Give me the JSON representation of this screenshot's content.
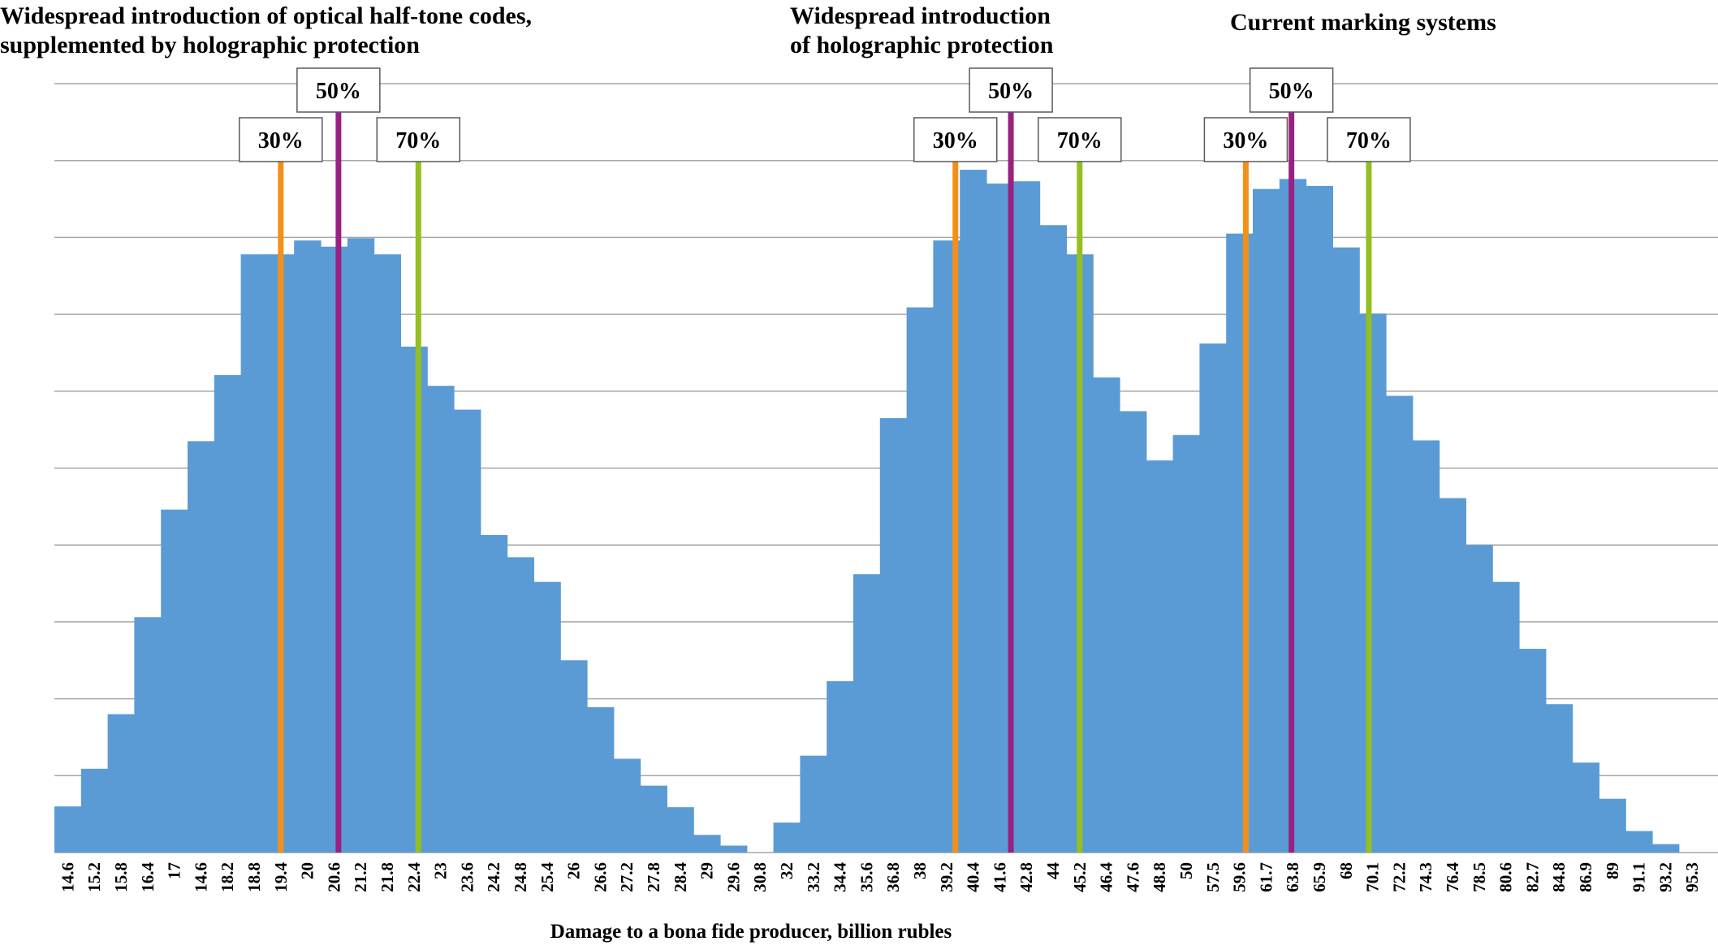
{
  "chart_data": {
    "type": "bar",
    "xlabel": "Damage to a bona fide producer, billion rubles",
    "y_axis_labels_shown": false,
    "grid": true,
    "ylim": [
      0,
      100
    ],
    "groups": [
      {
        "title_lines": [
          "Widespread introduction of optical half-tone codes,",
          "supplemented by holographic protection"
        ],
        "categories": [
          "14.6",
          "15.2",
          "15.8",
          "16.4",
          "17",
          "14.6",
          "18.2",
          "18.8",
          "19.4",
          "20",
          "20.6",
          "21.2",
          "21.8",
          "22.4",
          "23",
          "23.6",
          "24.2",
          "24.8",
          "25.4",
          "26",
          "26.6",
          "27.2",
          "27.8",
          "28.4",
          "29",
          "29.6"
        ],
        "values": [
          6,
          10.9,
          18,
          30.6,
          44.6,
          53.5,
          62.1,
          77.8,
          77.8,
          79.6,
          78.8,
          79.9,
          77.8,
          65.8,
          60.7,
          57.6,
          41.3,
          38.4,
          35.2,
          25,
          18.9,
          12.2,
          8.7,
          5.9,
          2.3,
          0.9
        ],
        "markers": [
          {
            "label": "30%",
            "color": "#F39019",
            "at": 19.4
          },
          {
            "label": "50%",
            "color": "#992183",
            "at": 20.7
          },
          {
            "label": "70%",
            "color": "#93C020",
            "at": 22.5
          }
        ]
      },
      {
        "title_lines": [
          "Widespread introduction",
          "of holographic protection"
        ],
        "categories": [
          "30.8",
          "32",
          "33.2",
          "34.4",
          "35.6",
          "36.8",
          "38",
          "39.2",
          "40.4",
          "41.6",
          "42.8",
          "44",
          "45.2",
          "46.4",
          "47.6",
          "48.8"
        ],
        "values": [
          0,
          3.9,
          12.6,
          22.3,
          36.2,
          56.5,
          70.9,
          79.6,
          88.8,
          87,
          87.3,
          81.6,
          77.8,
          61.8,
          57.4,
          51
        ],
        "markers": [
          {
            "label": "30%",
            "color": "#F39019",
            "at": 39.6
          },
          {
            "label": "50%",
            "color": "#992183",
            "at": 42.1
          },
          {
            "label": "70%",
            "color": "#93C020",
            "at": 45.2
          }
        ]
      },
      {
        "title_lines": [
          "Current marking systems"
        ],
        "categories": [
          "50",
          "57.5",
          "59.6",
          "61.7",
          "63.8",
          "65.9",
          "68",
          "70.1",
          "72.2",
          "74.3",
          "76.4",
          "78.5",
          "80.6",
          "82.7",
          "84.8",
          "86.9",
          "89",
          "91.1",
          "93.2",
          "95.3"
        ],
        "values": [
          54.3,
          66.2,
          80.5,
          86.3,
          87.6,
          86.7,
          78.7,
          70.1,
          59.4,
          53.6,
          46.1,
          40,
          35.2,
          26.5,
          19.3,
          11.7,
          7,
          2.8,
          1.1,
          0
        ],
        "markers": [
          {
            "label": "30%",
            "color": "#F39019",
            "at": 60.1
          },
          {
            "label": "50%",
            "color": "#992183",
            "at": 63.7
          },
          {
            "label": "70%",
            "color": "#93C020",
            "at": 69.8
          }
        ]
      }
    ]
  }
}
